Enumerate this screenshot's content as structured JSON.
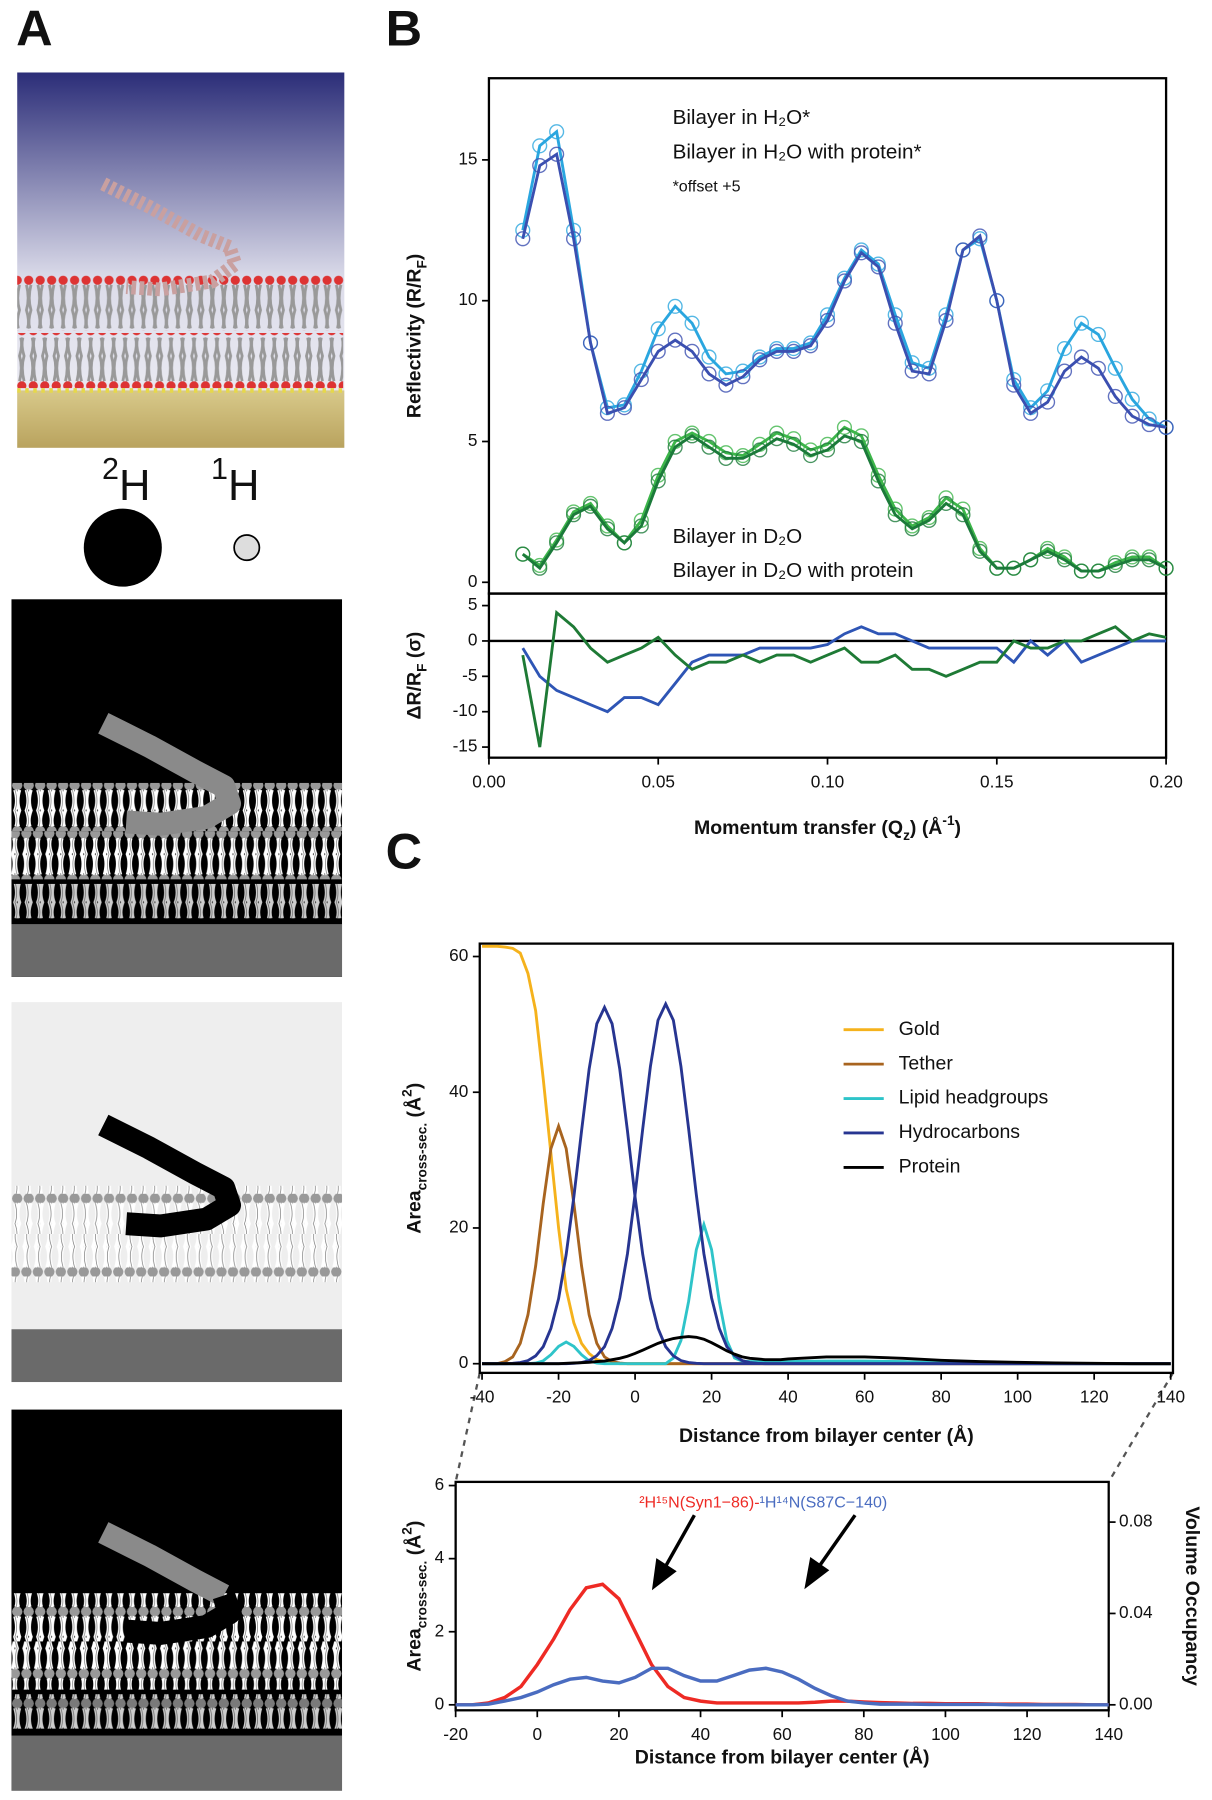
{
  "panel_labels": {
    "a": "A",
    "b": "B",
    "c": "C"
  },
  "panel_a": {
    "isotopes": [
      [
        {
          "sup": "2"
        },
        "H"
      ],
      [
        {
          "sup": "1"
        },
        "H"
      ]
    ]
  },
  "chart_data": [
    {
      "type": "line",
      "markers": true,
      "ylabel": [
        "Reflectivity (R/R",
        {
          "sub": "F"
        },
        ")"
      ],
      "annotation": "*offset +5",
      "x": [
        0.01,
        0.015,
        0.02,
        0.025,
        0.03,
        0.035,
        0.04,
        0.045,
        0.05,
        0.055,
        0.06,
        0.065,
        0.07,
        0.075,
        0.08,
        0.085,
        0.09,
        0.095,
        0.1,
        0.105,
        0.11,
        0.115,
        0.12,
        0.125,
        0.13,
        0.135,
        0.14,
        0.145,
        0.15,
        0.155,
        0.16,
        0.165,
        0.17,
        0.175,
        0.18,
        0.185,
        0.19,
        0.195,
        0.2
      ],
      "xlim": [
        0,
        0.2
      ],
      "ylim": [
        -0.4,
        17.9
      ],
      "yticks": [
        0,
        5,
        10,
        15
      ],
      "series": [
        {
          "name": "Bilayer in H₂O*",
          "color": "#2aa6df",
          "values": [
            12.5,
            15.5,
            16.0,
            12.5,
            8.5,
            6.2,
            6.3,
            7.5,
            9.0,
            9.8,
            9.2,
            8.0,
            7.4,
            7.5,
            8.0,
            8.3,
            8.3,
            8.5,
            9.5,
            10.8,
            11.8,
            11.3,
            9.5,
            7.8,
            7.6,
            9.5,
            11.8,
            12.2,
            10.0,
            7.2,
            6.2,
            6.8,
            8.3,
            9.2,
            8.8,
            7.6,
            6.5,
            5.8,
            5.5
          ]
        },
        {
          "name": "Bilayer in H₂O with protein*",
          "color": "#3b4fb0",
          "values": [
            12.2,
            14.8,
            15.2,
            12.2,
            8.5,
            6.0,
            6.2,
            7.2,
            8.2,
            8.6,
            8.2,
            7.4,
            7.0,
            7.3,
            7.9,
            8.2,
            8.2,
            8.4,
            9.3,
            10.7,
            11.7,
            11.2,
            9.2,
            7.5,
            7.4,
            9.3,
            11.8,
            12.3,
            10.0,
            7.0,
            6.0,
            6.4,
            7.5,
            8.0,
            7.6,
            6.6,
            5.9,
            5.6,
            5.5
          ]
        },
        {
          "name": "Bilayer in D₂O",
          "color": "#3db54a",
          "values": [
            1.0,
            0.6,
            1.5,
            2.5,
            2.8,
            2.0,
            1.4,
            2.2,
            3.8,
            5.0,
            5.3,
            5.0,
            4.6,
            4.5,
            4.9,
            5.3,
            5.1,
            4.7,
            4.9,
            5.5,
            5.2,
            3.8,
            2.6,
            2.0,
            2.3,
            3.0,
            2.6,
            1.2,
            0.5,
            0.5,
            0.8,
            1.2,
            0.9,
            0.4,
            0.4,
            0.7,
            0.9,
            0.9,
            0.5
          ]
        },
        {
          "name": "Bilayer in D₂O with protein",
          "color": "#1b7a3a",
          "values": [
            1.0,
            0.5,
            1.4,
            2.4,
            2.7,
            1.9,
            1.4,
            2.0,
            3.6,
            4.8,
            5.2,
            4.8,
            4.4,
            4.4,
            4.7,
            5.1,
            4.9,
            4.5,
            4.7,
            5.2,
            5.0,
            3.6,
            2.4,
            1.9,
            2.2,
            2.8,
            2.4,
            1.1,
            0.5,
            0.5,
            0.8,
            1.1,
            0.8,
            0.4,
            0.4,
            0.6,
            0.8,
            0.8,
            0.5
          ]
        }
      ]
    },
    {
      "type": "line",
      "ylabel": [
        "ΔR/R",
        {
          "sub": "F"
        },
        " (σ)"
      ],
      "xlabel": [
        "Momentum transfer (Q",
        {
          "sub": "z"
        },
        ") (Å",
        {
          "sup": "-1"
        },
        ")"
      ],
      "x": [
        0.01,
        0.015,
        0.02,
        0.025,
        0.03,
        0.035,
        0.04,
        0.045,
        0.05,
        0.055,
        0.06,
        0.065,
        0.07,
        0.075,
        0.08,
        0.085,
        0.09,
        0.095,
        0.1,
        0.105,
        0.11,
        0.115,
        0.12,
        0.125,
        0.13,
        0.135,
        0.14,
        0.145,
        0.15,
        0.155,
        0.16,
        0.165,
        0.17,
        0.175,
        0.18,
        0.185,
        0.19,
        0.195,
        0.2
      ],
      "xlim": [
        0,
        0.2
      ],
      "xticks": [
        {
          "value": 0,
          "label": "0.00"
        },
        {
          "value": 0.05,
          "label": "0.05"
        },
        {
          "value": 0.1,
          "label": "0.10"
        },
        {
          "value": 0.15,
          "label": "0.15"
        },
        {
          "value": 0.2,
          "label": "0.20"
        }
      ],
      "ylim": [
        -16.5,
        6.7
      ],
      "yticks": [
        5,
        0,
        -5,
        -10,
        -15
      ],
      "series": [
        {
          "color": "#2e55b5",
          "values": [
            -1,
            -5,
            -7,
            -8,
            -9,
            -10,
            -8,
            -8,
            -9,
            -6,
            -3,
            -2,
            -2,
            -2,
            -1,
            -1,
            -1,
            -1,
            -0.5,
            1,
            2,
            1,
            1,
            0,
            -1,
            -1,
            -1,
            -1,
            -1,
            -3,
            0,
            -2,
            0,
            -3,
            -2,
            -1,
            0,
            0,
            0
          ]
        },
        {
          "color": "#1e7a35",
          "values": [
            -2,
            -15,
            4,
            2,
            -1,
            -3,
            -2,
            -1,
            0.5,
            -2,
            -4,
            -3,
            -3,
            -2,
            -3,
            -2,
            -2,
            -3,
            -2,
            -1,
            -3,
            -3,
            -2,
            -4,
            -4,
            -5,
            -4,
            -3,
            -3,
            0,
            -1,
            -1,
            0,
            0,
            1,
            2,
            0,
            1,
            0.5
          ]
        }
      ]
    },
    {
      "type": "line",
      "ylabel": [
        "Area",
        {
          "sub": "cross-sec."
        },
        " (Å",
        {
          "sup": "2"
        },
        ")"
      ],
      "xlabel": "Distance from bilayer center (Å)",
      "x": [
        -40,
        -38,
        -36,
        -34,
        -32,
        -30,
        -28,
        -26,
        -24,
        -22,
        -20,
        -18,
        -16,
        -14,
        -12,
        -10,
        -8,
        -6,
        -4,
        -2,
        0,
        2,
        4,
        6,
        8,
        10,
        12,
        14,
        16,
        18,
        20,
        22,
        24,
        26,
        28,
        30,
        32,
        34,
        36,
        38,
        40,
        50,
        60,
        70,
        80,
        90,
        100,
        110,
        120,
        130,
        140
      ],
      "xlim": [
        -40.6,
        140.6
      ],
      "xticks": [
        -40,
        -20,
        0,
        20,
        40,
        60,
        80,
        100,
        120,
        140
      ],
      "ylim": [
        -1.35,
        61.9
      ],
      "yticks": [
        0,
        20,
        40,
        60
      ],
      "series": [
        {
          "name": "Gold",
          "color": "#f5b21c",
          "values": [
            61.5,
            61.5,
            61.5,
            61.4,
            61.2,
            60.5,
            57.5,
            52,
            42,
            31,
            20,
            11,
            6,
            3,
            1.5,
            0.6,
            0.3,
            0.1,
            0,
            0,
            0,
            0,
            0,
            0,
            0,
            0,
            0,
            0,
            0,
            0,
            0,
            0,
            0,
            0,
            0,
            0,
            0,
            0,
            0,
            0,
            0,
            0,
            0,
            0,
            0,
            0,
            0,
            0,
            0,
            0,
            0
          ]
        },
        {
          "name": "Tether",
          "color": "#a8641f",
          "values": [
            0,
            0,
            0,
            0.3,
            1.0,
            3.0,
            7.2,
            14.4,
            23.6,
            31.7,
            35,
            31.7,
            23.6,
            14.4,
            7.2,
            3.0,
            1.0,
            0.3,
            0.1,
            0,
            0,
            0,
            0,
            0,
            0,
            0,
            0,
            0,
            0,
            0,
            0,
            0,
            0,
            0,
            0,
            0,
            0,
            0,
            0,
            0,
            0,
            0,
            0,
            0,
            0,
            0,
            0,
            0,
            0,
            0,
            0
          ]
        },
        {
          "name": "Lipid headgroups",
          "color": "#2ec4c9",
          "values": [
            0,
            0,
            0,
            0,
            0,
            0,
            0,
            0.09,
            0.43,
            1.32,
            2.56,
            3.2,
            2.56,
            1.32,
            0.43,
            0.09,
            0,
            0,
            0,
            0,
            0,
            0,
            0,
            0,
            0,
            0.84,
            3.4,
            9.2,
            16.8,
            20.5,
            16.8,
            9.2,
            3.4,
            0.84,
            0.4,
            0.3,
            0.3,
            0.3,
            0.3,
            0.3,
            0.3,
            0.4,
            0.4,
            0.3,
            0.1,
            0,
            0,
            0,
            0,
            0,
            0
          ]
        },
        {
          "name": "Hydrocarbons",
          "color": "#273591",
          "curves": [
            [
              0,
              0,
              0,
              0,
              0.06,
              0.17,
              0.46,
              1.15,
              2.5,
              5.2,
              9.6,
              16.1,
              24.6,
              34.3,
              43.4,
              50.1,
              52.5,
              50.1,
              43.4,
              34.3,
              24.6,
              16.1,
              9.6,
              5.2,
              2.5,
              1.15,
              0.46,
              0.17,
              0.06,
              0,
              0,
              0,
              0,
              0,
              0,
              0,
              0,
              0,
              0,
              0,
              0,
              0,
              0,
              0,
              0,
              0,
              0,
              0,
              0,
              0,
              0
            ],
            [
              0,
              0,
              0,
              0,
              0,
              0,
              0,
              0,
              0,
              0,
              0,
              0,
              0.06,
              0.17,
              0.46,
              1.2,
              2.5,
              5.2,
              9.7,
              16.2,
              24.9,
              34.6,
              43.8,
              50.6,
              53,
              50.6,
              43.8,
              34.6,
              24.9,
              16.2,
              9.7,
              5.2,
              2.5,
              1.2,
              0.46,
              0.17,
              0.06,
              0,
              0,
              0,
              0,
              0,
              0,
              0,
              0,
              0,
              0,
              0,
              0,
              0,
              0
            ]
          ]
        },
        {
          "name": "Protein",
          "color": "#000000",
          "values": [
            0,
            0,
            0,
            0,
            0,
            0,
            0,
            0,
            0,
            0,
            0,
            0.05,
            0.1,
            0.15,
            0.2,
            0.3,
            0.4,
            0.6,
            0.8,
            1.1,
            1.5,
            2.0,
            2.5,
            3.0,
            3.4,
            3.7,
            3.9,
            4.0,
            3.9,
            3.6,
            3.1,
            2.5,
            1.9,
            1.4,
            1.0,
            0.8,
            0.7,
            0.6,
            0.6,
            0.6,
            0.7,
            1.0,
            1.0,
            0.8,
            0.5,
            0.3,
            0.2,
            0.1,
            0.05,
            0,
            0
          ]
        }
      ]
    },
    {
      "type": "line",
      "ylabel": [
        "Area",
        {
          "sub": "cross-sec."
        },
        " (Å",
        {
          "sup": "2"
        },
        ")"
      ],
      "y2label": "Volume Occupancy",
      "xlabel": "Distance from bilayer center (Å)",
      "name_separator": "-",
      "x": [
        -20,
        -16,
        -12,
        -8,
        -4,
        0,
        4,
        8,
        12,
        16,
        20,
        24,
        28,
        32,
        36,
        40,
        44,
        48,
        52,
        56,
        60,
        64,
        68,
        72,
        76,
        80,
        84,
        88,
        92,
        96,
        100,
        104,
        108,
        112,
        116,
        120,
        124,
        128,
        132,
        136,
        140
      ],
      "xlim": [
        -20,
        140
      ],
      "xticks": [
        -20,
        0,
        20,
        40,
        60,
        80,
        100,
        120,
        140
      ],
      "ylim": [
        -0.15,
        6.1
      ],
      "yticks": [
        0,
        2,
        4,
        6
      ],
      "y2lim": [
        -0.0024,
        0.0976
      ],
      "y2ticks": [
        {
          "value": 0,
          "label": "0.00"
        },
        {
          "value": 0.04,
          "label": "0.04"
        },
        {
          "value": 0.08,
          "label": "0.08"
        }
      ],
      "series": [
        {
          "name": "²H¹⁵N(Syn1−86)",
          "color": "#ee2a24",
          "values": [
            0,
            0,
            0.05,
            0.2,
            0.5,
            1.1,
            1.8,
            2.6,
            3.2,
            3.3,
            2.9,
            2.0,
            1.1,
            0.5,
            0.2,
            0.1,
            0.05,
            0.05,
            0.05,
            0.05,
            0.05,
            0.05,
            0.07,
            0.1,
            0.1,
            0.08,
            0.06,
            0.05,
            0.04,
            0.04,
            0.03,
            0.03,
            0.03,
            0.02,
            0.02,
            0.02,
            0.01,
            0.01,
            0.01,
            0,
            0
          ]
        },
        {
          "name": "¹H¹⁴N(S87C−140)",
          "color": "#4a6cc0",
          "values": [
            0,
            0,
            0.02,
            0.1,
            0.2,
            0.35,
            0.55,
            0.7,
            0.75,
            0.65,
            0.6,
            0.75,
            1.0,
            1.0,
            0.8,
            0.65,
            0.65,
            0.8,
            0.95,
            1.0,
            0.9,
            0.7,
            0.45,
            0.25,
            0.1,
            0.05,
            0.02,
            0.02,
            0.02,
            0.01,
            0.01,
            0.01,
            0.01,
            0.01,
            0,
            0,
            0,
            0,
            0,
            0,
            0
          ]
        }
      ]
    }
  ]
}
